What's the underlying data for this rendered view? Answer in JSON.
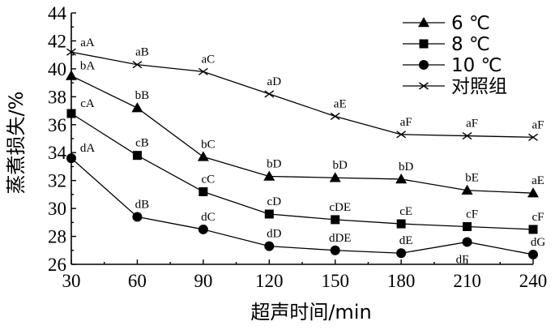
{
  "chart_data": {
    "type": "line",
    "xlabel": "超声时间/min",
    "ylabel": "蒸煮损失/%",
    "x": [
      30,
      60,
      90,
      120,
      150,
      180,
      210,
      240
    ],
    "xlim": [
      30,
      240
    ],
    "ylim": [
      26,
      44
    ],
    "y_ticks": [
      26,
      28,
      30,
      32,
      34,
      36,
      38,
      40,
      42,
      44
    ],
    "grid": false,
    "legend_position": "top-right",
    "series": [
      {
        "name": "6 ℃",
        "marker": "triangle",
        "values": [
          39.5,
          37.2,
          33.7,
          32.3,
          32.2,
          32.1,
          31.3,
          31.1
        ],
        "labels": [
          "bA",
          "bB",
          "bC",
          "bD",
          "bD",
          "bD",
          "bE",
          "aE"
        ]
      },
      {
        "name": "8 ℃",
        "marker": "square",
        "values": [
          36.8,
          33.8,
          31.2,
          29.6,
          29.2,
          28.9,
          28.7,
          28.5
        ],
        "labels": [
          "cA",
          "cB",
          "cC",
          "cD",
          "cDE",
          "cE",
          "cF",
          "cF"
        ]
      },
      {
        "name": "10 ℃",
        "marker": "circle",
        "values": [
          33.6,
          29.4,
          28.5,
          27.3,
          27.0,
          26.8,
          27.6,
          26.7
        ],
        "labels": [
          "dA",
          "dB",
          "dC",
          "dD",
          "dDE",
          "dE",
          "dF",
          "dG"
        ]
      },
      {
        "name": "对照组",
        "marker": "x",
        "values": [
          41.2,
          40.3,
          39.8,
          38.2,
          36.6,
          35.3,
          35.2,
          35.1
        ],
        "labels": [
          "aA",
          "aB",
          "aC",
          "aD",
          "aE",
          "aF",
          "aF",
          "aF"
        ]
      }
    ]
  }
}
